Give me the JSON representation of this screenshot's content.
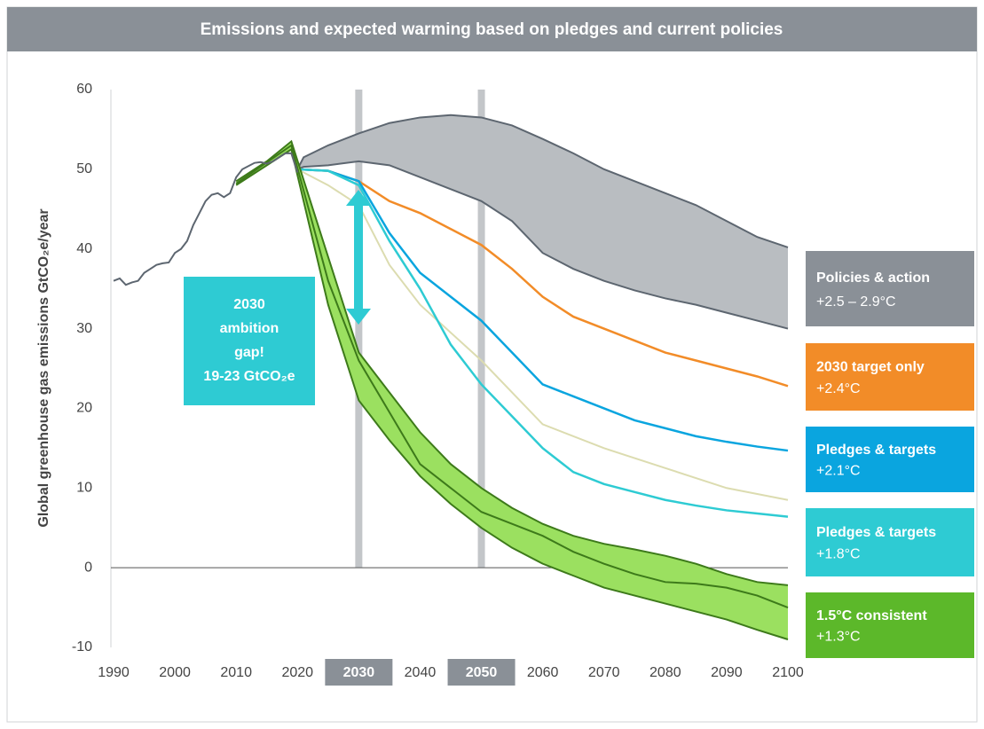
{
  "chart_data": {
    "type": "line",
    "title": "Emissions and expected warming based on pledges and current policies",
    "y_label": "Global greenhouse gas emissions GtCO₂e/year",
    "xlim": [
      1990,
      2100
    ],
    "ylim": [
      -10,
      60
    ],
    "xticks": [
      1990,
      2000,
      2010,
      2020,
      2030,
      2040,
      2050,
      2060,
      2070,
      2080,
      2090,
      2100
    ],
    "yticks": [
      -10,
      0,
      10,
      20,
      30,
      40,
      50,
      60
    ],
    "highlight_years": [
      2030,
      2050
    ],
    "annotation": [
      "2030",
      "ambition",
      "gap!",
      "19-23 GtCO₂e"
    ],
    "series": [
      {
        "kind": "band",
        "name": "Policies & action",
        "warming": "+2.5 – 2.9°C",
        "color": "#8a9097",
        "fill": "#b9bdc1",
        "stroke": "#5d6670",
        "x": [
          2020,
          2021,
          2025,
          2030,
          2035,
          2040,
          2045,
          2050,
          2055,
          2060,
          2065,
          2070,
          2075,
          2080,
          2085,
          2090,
          2095,
          2100
        ],
        "upper": [
          50,
          51.5,
          53,
          54.5,
          55.8,
          56.5,
          56.8,
          56.5,
          55.5,
          53.8,
          52,
          50,
          48.5,
          47,
          45.5,
          43.5,
          41.5,
          40.2
        ],
        "lower": [
          50,
          50.3,
          50.5,
          51,
          50.5,
          49,
          47.5,
          46,
          43.5,
          39.5,
          37.5,
          36,
          34.8,
          33.8,
          33,
          32,
          31,
          30
        ]
      },
      {
        "kind": "line",
        "name": "2030 target only",
        "warming": "+2.4°C",
        "color": "#f28c28",
        "x": [
          2020,
          2025,
          2030,
          2035,
          2040,
          2045,
          2050,
          2055,
          2060,
          2065,
          2070,
          2075,
          2080,
          2085,
          2090,
          2095,
          2100
        ],
        "values": [
          50,
          49.8,
          48.5,
          46,
          44.5,
          42.5,
          40.5,
          37.5,
          34,
          31.5,
          30,
          28.5,
          27,
          26,
          25,
          24,
          22.8
        ]
      },
      {
        "kind": "line",
        "name": "Pledges & targets",
        "warming": "+2.1°C",
        "color": "#0aa5df",
        "x": [
          2020,
          2025,
          2030,
          2035,
          2040,
          2045,
          2050,
          2055,
          2060,
          2065,
          2070,
          2075,
          2080,
          2085,
          2090,
          2095,
          2100
        ],
        "values": [
          50,
          49.8,
          48.5,
          42,
          37,
          34,
          31,
          27,
          23,
          21.5,
          20,
          18.5,
          17.5,
          16.5,
          15.8,
          15.2,
          14.7
        ]
      },
      {
        "kind": "line",
        "color": "#dcdcb0",
        "x": [
          2020,
          2025,
          2030,
          2035,
          2040,
          2050,
          2060,
          2070,
          2080,
          2090,
          2100
        ],
        "values": [
          50,
          48,
          45.5,
          38,
          33,
          26,
          18,
          15,
          12.5,
          10,
          8.5
        ]
      },
      {
        "kind": "line",
        "name": "Pledges & targets",
        "warming": "+1.8°C",
        "color": "#2ecbd3",
        "x": [
          2020,
          2025,
          2030,
          2035,
          2040,
          2045,
          2050,
          2055,
          2060,
          2065,
          2070,
          2075,
          2080,
          2085,
          2090,
          2095,
          2100
        ],
        "values": [
          50,
          49.8,
          48,
          41,
          35,
          28,
          23,
          19,
          15,
          12,
          10.5,
          9.5,
          8.5,
          7.8,
          7.2,
          6.8,
          6.4
        ]
      },
      {
        "kind": "band",
        "name": "1.5°C consistent",
        "warming": "+1.3°C",
        "color": "#5cb82a",
        "fill": "#9be060",
        "stroke": "#3d7a1a",
        "x": [
          2010,
          2015,
          2019,
          2025,
          2030,
          2035,
          2040,
          2045,
          2050,
          2055,
          2060,
          2065,
          2070,
          2075,
          2080,
          2085,
          2090,
          2095,
          2100
        ],
        "upper": [
          48.5,
          51,
          53.5,
          39,
          27,
          22,
          17,
          13,
          10,
          7.5,
          5.5,
          4,
          3,
          2.3,
          1.5,
          0.5,
          -0.8,
          -1.8,
          -2.2
        ],
        "lower": [
          48,
          50.5,
          52.5,
          33,
          21,
          16,
          11.5,
          8,
          5,
          2.5,
          0.5,
          -1,
          -2.5,
          -3.5,
          -4.5,
          -5.5,
          -6.5,
          -7.8,
          -9
        ]
      },
      {
        "kind": "line",
        "color": "#3d7a1a",
        "x": [
          2010,
          2019,
          2025,
          2030,
          2035,
          2040,
          2045,
          2050,
          2055,
          2060,
          2065,
          2070,
          2075,
          2080,
          2085,
          2090,
          2095,
          2100
        ],
        "values": [
          48.2,
          53,
          36,
          26,
          19.5,
          13,
          10,
          7,
          5.5,
          4,
          2,
          0.5,
          -0.8,
          -1.8,
          -2,
          -2.5,
          -3.5,
          -5
        ]
      },
      {
        "kind": "line",
        "color": "#5d6670",
        "x": [
          1990,
          1991,
          1992,
          1993,
          1994,
          1995,
          1996,
          1997,
          1998,
          1999,
          2000,
          2001,
          2002,
          2003,
          2004,
          2005,
          2006,
          2007,
          2008,
          2009,
          2010,
          2011,
          2012,
          2013,
          2014,
          2015,
          2016,
          2017,
          2018,
          2019,
          2020
        ],
        "values": [
          36,
          36.3,
          35.5,
          35.8,
          36,
          37,
          37.5,
          38,
          38.2,
          38.3,
          39.5,
          40,
          41,
          43,
          44.5,
          46,
          46.8,
          47,
          46.5,
          47,
          49,
          50,
          50.4,
          50.8,
          50.9,
          50.7,
          51,
          51.5,
          52,
          52,
          49.6
        ]
      }
    ]
  }
}
